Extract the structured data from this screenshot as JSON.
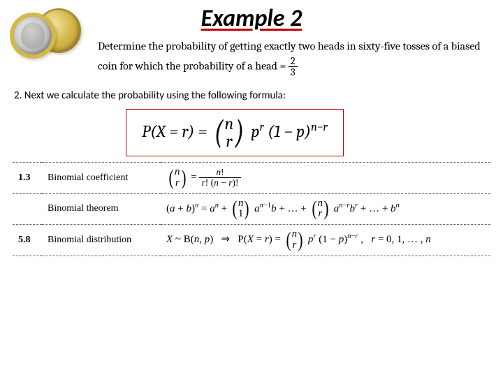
{
  "title": "Example 2",
  "problem_prefix": "Determine the probability of getting exactly two heads in sixty-five tosses of a biased coin for which the probability of a head ",
  "problem_fraction_n": "2",
  "problem_fraction_d": "3",
  "step_text": "2. Next we calculate the probability using the following formula:",
  "formula": {
    "lhs": "P(X = r) = ",
    "binom_top": "n",
    "binom_bot": "r",
    "mid": " p",
    "exp1": "r",
    "tail": "(1 − p)",
    "exp2": "n−r"
  },
  "table": {
    "rows": [
      {
        "num": "1.3",
        "label": "Binomial coefficient",
        "math_html": "<span class='binom'><span class='paren'>(</span><span class='stack'><span><i>n</i></span><span><i>r</i></span></span><span class='paren'>)</span></span> = <span class='frac'><span class='n'><i>n</i>!</span><span class='d'><i>r</i>! (<i>n</i> − <i>r</i>)!</span></span>"
      },
      {
        "num": "",
        "label": "Binomial theorem",
        "math_html": "(<i>a</i> + <i>b</i>)<sup><i>n</i></sup> = <i>a</i><sup><i>n</i></sup> + <span class='binom'><span class='paren'>(</span><span class='stack'><span><i>n</i></span><span>1</span></span><span class='paren'>)</span></span> <i>a</i><sup><i>n</i>−1</sup><i>b</i> + … + <span class='binom'><span class='paren'>(</span><span class='stack'><span><i>n</i></span><span><i>r</i></span></span><span class='paren'>)</span></span> <i>a</i><sup><i>n</i>−<i>r</i></sup><i>b</i><sup><i>r</i></sup> + … + <i>b</i><sup><i>n</i></sup>"
      },
      {
        "num": "5.8",
        "label": "Binomial distribution",
        "math_html": "<i>X</i> ~ B(<i>n</i>, <i>p</i>) &nbsp;&nbsp;⇒&nbsp;&nbsp; P(<i>X</i> = <i>r</i>) = <span class='binom'><span class='paren'>(</span><span class='stack'><span><i>n</i></span><span><i>r</i></span></span><span class='paren'>)</span></span> <i>p</i><sup><i>r</i></sup> (1 − <i>p</i>)<sup><i>n</i>−<i>r</i></sup> , &nbsp; <i>r</i> = 0, 1, … , <i>n</i>"
      }
    ]
  },
  "colors": {
    "title_underline": "#c00000",
    "formula_border": "#c00000",
    "dashed_border": "#666666",
    "background": "#ffffff",
    "coin_gold": "#d4b84a",
    "coin_silver": "#c9c9c9"
  },
  "fonts": {
    "title_size_pt": 26,
    "body_size_pt": 12,
    "formula_size_pt": 18,
    "table_size_pt": 11
  }
}
